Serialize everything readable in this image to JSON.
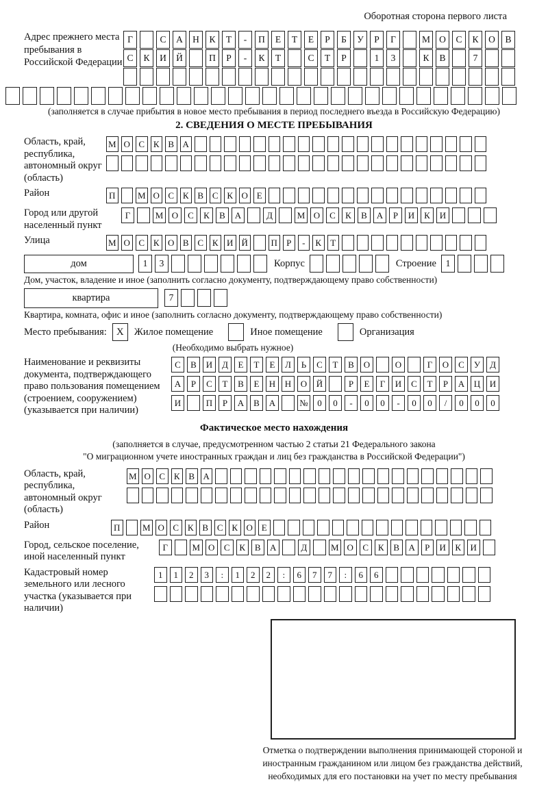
{
  "page": {
    "header_note": "Оборотная сторона первого листа"
  },
  "prev_address": {
    "label": "Адрес прежнего места пребывания в Российской Федерации",
    "row1": [
      "Г",
      "",
      "С",
      "А",
      "Н",
      "К",
      "Т",
      "-",
      "П",
      "Е",
      "Т",
      "Е",
      "Р",
      "Б",
      "У",
      "Р",
      "Г",
      "",
      "М",
      "О",
      "С",
      "К",
      "О",
      "В"
    ],
    "row2": [
      "С",
      "К",
      "И",
      "Й",
      "",
      "П",
      "Р",
      "-",
      "К",
      "Т",
      "",
      "С",
      "Т",
      "Р",
      "",
      "1",
      "3",
      "",
      "К",
      "В",
      "",
      "7",
      "",
      ""
    ],
    "row3": [
      "",
      "",
      "",
      "",
      "",
      "",
      "",
      "",
      "",
      "",
      "",
      "",
      "",
      "",
      "",
      "",
      "",
      "",
      "",
      "",
      "",
      "",
      "",
      ""
    ],
    "row4": [
      "",
      "",
      "",
      "",
      "",
      "",
      "",
      "",
      "",
      "",
      "",
      "",
      "",
      "",
      "",
      "",
      "",
      "",
      "",
      "",
      "",
      "",
      "",
      "",
      "",
      "",
      "",
      "",
      "",
      ""
    ],
    "caption": "(заполняется в случае прибытия в новое место пребывания в период последнего въезда в Российскую Федерацию)"
  },
  "section2": {
    "title": "2. СВЕДЕНИЯ О МЕСТЕ ПРЕБЫВАНИЯ",
    "region": {
      "label": "Область, край, республика, автономный округ (область)",
      "row1": [
        "М",
        "О",
        "С",
        "К",
        "В",
        "А",
        "",
        "",
        "",
        "",
        "",
        "",
        "",
        "",
        "",
        "",
        "",
        "",
        "",
        "",
        "",
        "",
        "",
        "",
        "",
        ""
      ],
      "row2": [
        "",
        "",
        "",
        "",
        "",
        "",
        "",
        "",
        "",
        "",
        "",
        "",
        "",
        "",
        "",
        "",
        "",
        "",
        "",
        "",
        "",
        "",
        "",
        "",
        "",
        ""
      ]
    },
    "district": {
      "label": "Район",
      "row": [
        "П",
        "",
        "М",
        "О",
        "С",
        "К",
        "В",
        "С",
        "К",
        "О",
        "Е",
        "",
        "",
        "",
        "",
        "",
        "",
        "",
        "",
        "",
        "",
        "",
        "",
        "",
        "",
        ""
      ]
    },
    "city": {
      "label": "Город или другой населенный пункт",
      "row": [
        "Г",
        "",
        "М",
        "О",
        "С",
        "К",
        "В",
        "А",
        "",
        "Д",
        "",
        "М",
        "О",
        "С",
        "К",
        "В",
        "А",
        "Р",
        "И",
        "К",
        "И",
        "",
        "",
        ""
      ]
    },
    "street": {
      "label": "Улица",
      "row": [
        "М",
        "О",
        "С",
        "К",
        "О",
        "В",
        "С",
        "К",
        "И",
        "Й",
        "",
        "П",
        "Р",
        "-",
        "К",
        "Т",
        "",
        "",
        "",
        "",
        "",
        "",
        "",
        "",
        "",
        ""
      ]
    },
    "house": {
      "box_label": "дом",
      "house_cells": [
        "1",
        "3",
        "",
        "",
        "",
        "",
        "",
        ""
      ],
      "korpus_label": "Корпус",
      "korpus_cells": [
        "",
        "",
        "",
        "",
        ""
      ],
      "stroenie_label": "Строение",
      "stroenie_cells": [
        "1",
        "",
        "",
        ""
      ],
      "caption": "Дом, участок, владение и иное (заполнить согласно документу, подтверждающему право собственности)"
    },
    "apartment": {
      "box_label": "квартира",
      "cells": [
        "7",
        "",
        "",
        ""
      ],
      "caption": "Квартира, комната, офис и иное (заполнить согласно документу, подтверждающему право собственности)"
    },
    "stay_type": {
      "label": "Место пребывания:",
      "option1": "Жилое помещение",
      "option1_mark": "X",
      "option2": "Иное помещение",
      "option2_mark": "",
      "option3": "Организация",
      "option3_mark": "",
      "caption": "(Необходимо выбрать нужное)"
    },
    "document": {
      "label": "Наименование и реквизиты документа, подтверждающего право пользования помещением (строением, сооружением) (указывается при наличии)",
      "row1": [
        "С",
        "В",
        "И",
        "Д",
        "Е",
        "Т",
        "Е",
        "Л",
        "Ь",
        "С",
        "Т",
        "В",
        "О",
        "",
        "О",
        "",
        "Г",
        "О",
        "С",
        "У",
        "Д"
      ],
      "row2": [
        "А",
        "Р",
        "С",
        "Т",
        "В",
        "Е",
        "Н",
        "Н",
        "О",
        "Й",
        "",
        "Р",
        "Е",
        "Г",
        "И",
        "С",
        "Т",
        "Р",
        "А",
        "Ц",
        "И"
      ],
      "row3": [
        "И",
        "",
        "П",
        "Р",
        "А",
        "В",
        "А",
        "",
        "№",
        "0",
        "0",
        "-",
        "0",
        "0",
        "-",
        "0",
        "0",
        "/",
        "0",
        "0",
        "0"
      ]
    }
  },
  "actual_location": {
    "title": "Фактическое место нахождения",
    "caption_line1": "(заполняется в случае, предусмотренном частью 2 статьи 21 Федерального закона",
    "caption_line2": "\"О миграционном учете иностранных граждан и лиц без гражданства в Российской Федерации\")",
    "region": {
      "label": "Область, край, республика, автономный округ (область)",
      "row1": [
        "М",
        "О",
        "С",
        "К",
        "В",
        "А",
        "",
        "",
        "",
        "",
        "",
        "",
        "",
        "",
        "",
        "",
        "",
        "",
        "",
        "",
        "",
        "",
        "",
        "",
        ""
      ],
      "row2": [
        "",
        "",
        "",
        "",
        "",
        "",
        "",
        "",
        "",
        "",
        "",
        "",
        "",
        "",
        "",
        "",
        "",
        "",
        "",
        "",
        "",
        "",
        "",
        "",
        ""
      ]
    },
    "district": {
      "label": "Район",
      "row": [
        "П",
        "",
        "М",
        "О",
        "С",
        "К",
        "В",
        "С",
        "К",
        "О",
        "Е",
        "",
        "",
        "",
        "",
        "",
        "",
        "",
        "",
        "",
        "",
        "",
        "",
        "",
        "",
        ""
      ]
    },
    "city": {
      "label": "Город, сельское поселение, иной населенный пункт",
      "row": [
        "Г",
        "",
        "М",
        "О",
        "С",
        "К",
        "В",
        "А",
        "",
        "Д",
        "",
        "М",
        "О",
        "С",
        "К",
        "В",
        "А",
        "Р",
        "И",
        "К",
        "И",
        ""
      ]
    },
    "cadastral": {
      "label": "Кадастровый номер земельного или лесного участка (указывается при наличии)",
      "row1": [
        "1",
        "1",
        "2",
        "3",
        ":",
        "1",
        "2",
        "2",
        ":",
        "6",
        "7",
        "7",
        ":",
        "6",
        "6",
        "",
        "",
        "",
        "",
        "",
        "",
        ""
      ],
      "row2": [
        "",
        "",
        "",
        "",
        "",
        "",
        "",
        "",
        "",
        "",
        "",
        "",
        "",
        "",
        "",
        "",
        "",
        "",
        "",
        "",
        "",
        ""
      ]
    },
    "stamp_caption": "Отметка о подтверждении выполнения принимающей стороной и иностранным гражданином или лицом без гражданства действий, необходимых для его постановки на учет по месту пребывания"
  }
}
